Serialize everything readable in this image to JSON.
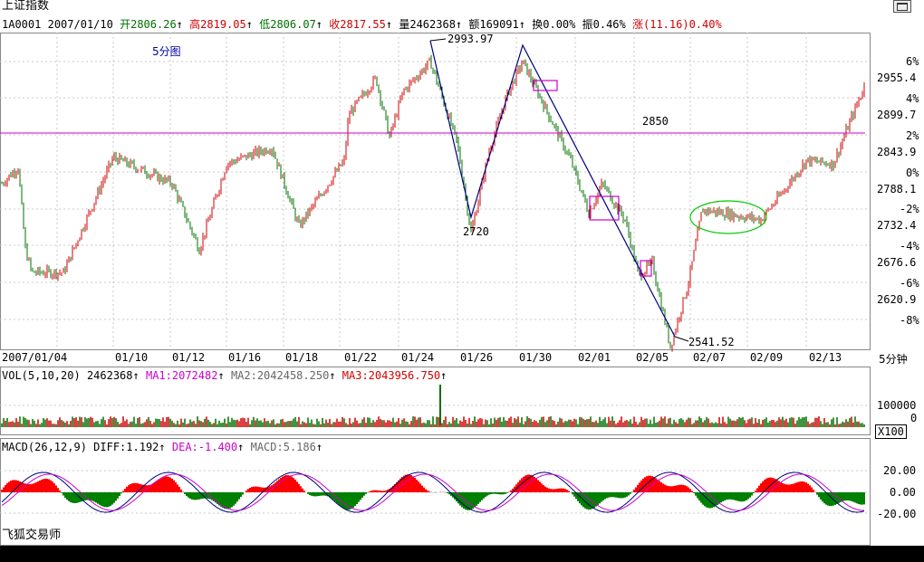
{
  "header": {
    "index_name": "上证指数",
    "code": "1A0001",
    "date": "2007/01/10",
    "open_label": "开",
    "open": "2806.26",
    "high_label": "高",
    "high": "2819.05",
    "low_label": "低",
    "low": "2806.07",
    "close_label": "收",
    "close": "2817.55",
    "volume_label": "量",
    "volume": "2462368",
    "amount_label": "额",
    "amount": "169091",
    "turnover_label": "换",
    "turnover": "0.00%",
    "amplitude_label": "振",
    "amplitude": "0.46%",
    "change_label": "涨",
    "change": "(11.16)",
    "change_pct": "0.40%",
    "arrow": "↑"
  },
  "period_label": "5分图",
  "annotations": {
    "peak1": "2993.97",
    "trough": "2720",
    "level": "2850",
    "bottom": "2541.52"
  },
  "price_axis": {
    "price_labels": [
      "2955.4",
      "2899.7",
      "2843.9",
      "2788.1",
      "2732.4",
      "2676.6",
      "2620.9"
    ],
    "pct_labels": [
      "6%",
      "4%",
      "2%",
      "0%",
      "-2%",
      "-4%",
      "-6%",
      "-8%"
    ]
  },
  "x_axis": {
    "labels": [
      "2007/01/04",
      "01/10",
      "01/12",
      "01/16",
      "01/18",
      "01/22",
      "01/24",
      "01/26",
      "01/30",
      "02/01",
      "02/05",
      "02/07",
      "02/09",
      "02/13"
    ],
    "period_label": "5分钟"
  },
  "volume_panel": {
    "title": "VOL(5,10,20)",
    "value": "2462368",
    "ma1": "MA1:2072482",
    "ma2": "MA2:2042458.250",
    "ma3": "MA3:2043956.750",
    "axis_label": "100000",
    "axis_zero": "0",
    "multiplier": "X100"
  },
  "macd_panel": {
    "title": "MACD(26,12,9)",
    "diff": "DIFF:1.192",
    "dea": "DEA:-1.400",
    "macd": "MACD:5.186",
    "axis_labels": [
      "20.00",
      "0.00",
      "-20.00"
    ]
  },
  "watermark": "飞狐交易师",
  "colors": {
    "up": "#d00000",
    "down": "#007000",
    "level_line": "#cc00cc",
    "trend_line": "#000080",
    "ellipse": "#00cc00",
    "grid": "#888888",
    "period_label": "#0000a0"
  },
  "chart_data": {
    "type": "candlestick",
    "title": "上证指数",
    "ylim": [
      2541.52,
      2993.97
    ],
    "key_points": [
      {
        "x": "01/04",
        "y": 2820
      },
      {
        "x": "01/24",
        "y": 2993.97
      },
      {
        "x": "01/26",
        "y": 2720
      },
      {
        "x": "01/30",
        "y": 2990
      },
      {
        "x": "02/05",
        "y": 2541.52
      },
      {
        "x": "02/13",
        "y": 2955.4
      }
    ],
    "reference_level": 2850
  }
}
